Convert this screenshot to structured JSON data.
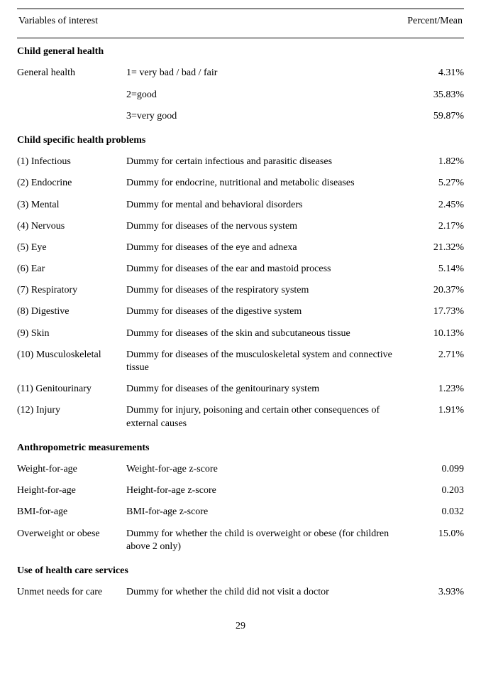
{
  "header": {
    "left": "Variables of interest",
    "right": "Percent/Mean"
  },
  "sections": [
    {
      "title": "Child general health",
      "rows": [
        {
          "c1": "General health",
          "c2": "1= very bad / bad / fair",
          "c3": "4.31%"
        },
        {
          "c1": "",
          "c2": "2=good",
          "c3": "35.83%"
        },
        {
          "c1": "",
          "c2": "3=very good",
          "c3": "59.87%"
        }
      ]
    },
    {
      "title": "Child specific health problems",
      "rows": [
        {
          "c1": "(1) Infectious",
          "c2": "Dummy for certain infectious and parasitic diseases",
          "c3": "1.82%"
        },
        {
          "c1": "(2) Endocrine",
          "c2": "Dummy for endocrine, nutritional and metabolic diseases",
          "c3": "5.27%"
        },
        {
          "c1": "(3) Mental",
          "c2": "Dummy for mental and behavioral disorders",
          "c3": "2.45%"
        },
        {
          "c1": "(4) Nervous",
          "c2": "Dummy for diseases of the nervous system",
          "c3": "2.17%"
        },
        {
          "c1": "(5) Eye",
          "c2": "Dummy for diseases of the eye and adnexa",
          "c3": "21.32%"
        },
        {
          "c1": "(6) Ear",
          "c2": "Dummy for diseases of the ear and mastoid process",
          "c3": "5.14%"
        },
        {
          "c1": "(7) Respiratory",
          "c2": "Dummy for diseases of the respiratory system",
          "c3": "20.37%"
        },
        {
          "c1": "(8) Digestive",
          "c2": "Dummy for diseases of the digestive system",
          "c3": "17.73%"
        },
        {
          "c1": "(9) Skin",
          "c2": "Dummy for diseases of the skin and subcutaneous tissue",
          "c3": "10.13%"
        },
        {
          "c1": "(10) Musculoskeletal",
          "c2": "Dummy for diseases of the musculoskeletal system and connective tissue",
          "c3": "2.71%"
        },
        {
          "c1": "(11) Genitourinary",
          "c2": "Dummy for diseases of the genitourinary system",
          "c3": "1.23%"
        },
        {
          "c1": "(12) Injury",
          "c2": "Dummy for injury, poisoning and certain other consequences of external causes",
          "c3": "1.91%"
        }
      ]
    },
    {
      "title": "Anthropometric measurements",
      "rows": [
        {
          "c1": "Weight-for-age",
          "c2": "Weight-for-age z-score",
          "c3": "0.099"
        },
        {
          "c1": "Height-for-age",
          "c2": "Height-for-age z-score",
          "c3": "0.203"
        },
        {
          "c1": "BMI-for-age",
          "c2": "BMI-for-age z-score",
          "c3": "0.032"
        },
        {
          "c1": "Overweight or obese",
          "c2": "Dummy for whether the child is overweight or obese (for children above 2 only)",
          "c3": "15.0%"
        }
      ]
    },
    {
      "title": "Use of health care services",
      "rows": [
        {
          "c1": "Unmet needs for care",
          "c2": "Dummy for whether the child did not visit a doctor",
          "c3": "3.93%"
        }
      ]
    }
  ],
  "page_number": "29"
}
